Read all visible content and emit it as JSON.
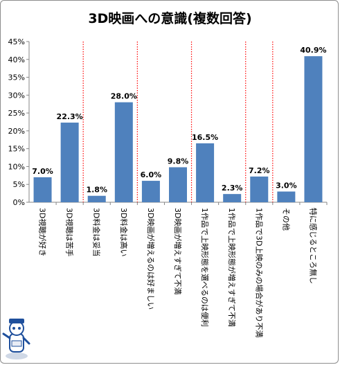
{
  "chart_data": {
    "type": "bar",
    "title": "3D映画への意識(複数回答)",
    "categories": [
      "3D視聴が好き",
      "3D視聴は苦手",
      "3D料金は妥当",
      "3D料金は高い",
      "3D映画が増えるのは好ましい",
      "3D映画が増えすぎて不満",
      "1作品で上映形態を選べるのは便利",
      "1作品で上映形態が増えすぎて不満",
      "1作品で3D上映のみの場合があり不満",
      "その他",
      "特に感じるところ無し"
    ],
    "values": [
      7.0,
      22.3,
      1.8,
      28.0,
      6.0,
      9.8,
      16.5,
      2.3,
      7.2,
      3.0,
      40.9
    ],
    "value_labels": [
      "7.0%",
      "22.3%",
      "1.8%",
      "28.0%",
      "6.0%",
      "9.8%",
      "16.5%",
      "2.3%",
      "7.2%",
      "3.0%",
      "40.9%"
    ],
    "yticks": [
      "0%",
      "5%",
      "10%",
      "15%",
      "20%",
      "25%",
      "30%",
      "35%",
      "40%",
      "45%"
    ],
    "ylim": [
      0,
      45
    ],
    "group_separators_after": [
      1,
      3,
      5,
      7,
      8
    ],
    "bar_color": "#4f81bd",
    "separator_color": "#ff0000",
    "grid": false
  }
}
